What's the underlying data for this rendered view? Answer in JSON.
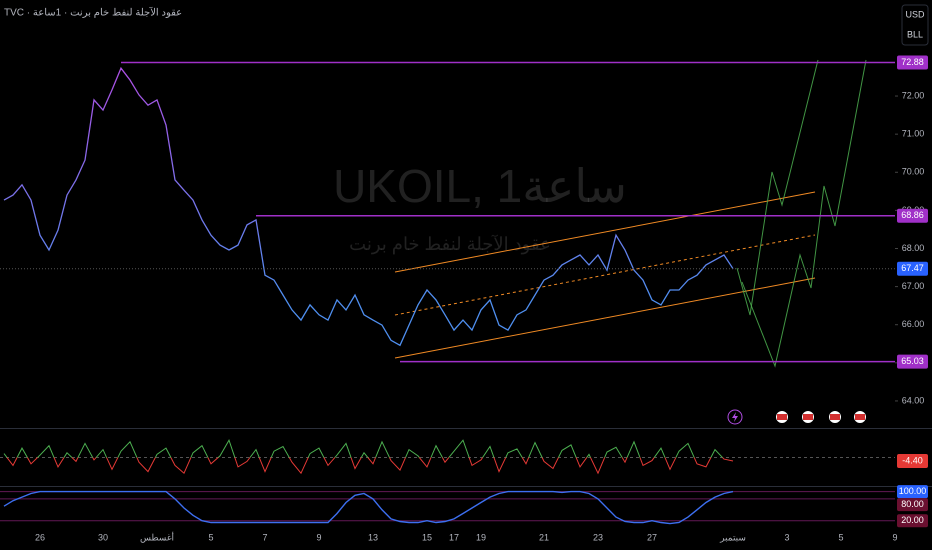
{
  "header": {
    "title": "TVC · عقود الآجلة لنفط خام برنت · 1ساعة",
    "currency": "USD",
    "unit": "BLL"
  },
  "watermark": {
    "symbol": "UKOIL, 1ساعة",
    "description": "عقود الآجلة لنفط خام برنت"
  },
  "chart_data": {
    "type": "line",
    "categories": [
      null,
      null,
      null,
      null,
      "26",
      null,
      null,
      null,
      null,
      null,
      null,
      "30",
      null,
      null,
      null,
      null,
      null,
      "أغسطس",
      null,
      null,
      null,
      null,
      null,
      "5",
      null,
      null,
      null,
      null,
      null,
      "7",
      null,
      null,
      null,
      null,
      null,
      "9",
      null,
      null,
      null,
      null,
      null,
      "13",
      null,
      null,
      null,
      null,
      null,
      "15",
      null,
      null,
      "17",
      null,
      null,
      "19",
      null,
      null,
      null,
      null,
      null,
      null,
      "21",
      null,
      null,
      null,
      null,
      null,
      "23",
      null,
      null,
      null,
      null,
      null,
      "27",
      null,
      null,
      null,
      null,
      null,
      null,
      null,
      null,
      "سبتمبر",
      null,
      null,
      null,
      null,
      null,
      "3",
      null,
      null,
      null,
      null,
      null,
      "5",
      null,
      null,
      null,
      null,
      null,
      "9"
    ],
    "series": [
      {
        "color": "#5b8def",
        "values": [
          69.27,
          69.4,
          69.67,
          69.27,
          68.35,
          67.96,
          68.48,
          69.4,
          69.8,
          70.32,
          71.9,
          71.63,
          72.16,
          72.73,
          72.42,
          72.03,
          71.76,
          71.9,
          71.24,
          69.8,
          69.53,
          69.27,
          68.75,
          68.35,
          68.09,
          67.96,
          68.09,
          68.62,
          68.75,
          67.3,
          67.17,
          66.78,
          66.39,
          66.12,
          66.52,
          66.26,
          66.12,
          66.65,
          66.39,
          66.78,
          66.26,
          66.12,
          65.99,
          65.59,
          65.46,
          65.99,
          66.52,
          66.91,
          66.65,
          66.26,
          65.86,
          66.12,
          65.86,
          66.39,
          66.65,
          65.99,
          65.86,
          66.26,
          66.39,
          66.78,
          67.17,
          67.3,
          67.57,
          67.7,
          67.83,
          67.57,
          67.83,
          67.43,
          68.35,
          67.96,
          67.43,
          67.17,
          66.65,
          66.52,
          66.91,
          66.91,
          67.17,
          67.3,
          67.57,
          67.7,
          67.83,
          67.47,
          null,
          null,
          null,
          null,
          null,
          null,
          null,
          null,
          null,
          null,
          null,
          null,
          null,
          null,
          null,
          null,
          null,
          null
        ]
      }
    ],
    "gradient_colors": [
      "#b04de3",
      "#4f8ff0"
    ],
    "ylim": [
      63.29,
      74.52
    ],
    "yticks": [
      {
        "value": 64,
        "label": "64.00"
      },
      {
        "value": 65,
        "label": "65.00"
      },
      {
        "value": 66,
        "label": "66.00"
      },
      {
        "value": 67,
        "label": "67.00"
      },
      {
        "value": 68,
        "label": "68.00"
      },
      {
        "value": 69,
        "label": "69.00"
      },
      {
        "value": 70,
        "label": "70.00"
      },
      {
        "value": 71,
        "label": "71.00"
      },
      {
        "value": 72,
        "label": "72.00"
      }
    ],
    "levels": [
      72.88,
      68.86,
      65.03
    ],
    "level_color": "#a030c8",
    "last_price": 67.47,
    "last_price_color": "#2962ff",
    "grid": false,
    "oscillator": {
      "ylim": [
        -35,
        35
      ],
      "colors": [
        "#4caf50",
        "#e53935"
      ],
      "values": [
        5,
        -10,
        12,
        -8,
        3,
        15,
        -12,
        6,
        -5,
        18,
        -3,
        10,
        -15,
        8,
        20,
        -6,
        -18,
        4,
        12,
        -10,
        -20,
        6,
        15,
        -8,
        2,
        22,
        -12,
        -5,
        10,
        -18,
        8,
        14,
        -6,
        -20,
        5,
        12,
        -10,
        3,
        18,
        -14,
        6,
        -8,
        20,
        -4,
        -16,
        10,
        2,
        -12,
        15,
        -6,
        8,
        22,
        -10,
        -3,
        14,
        -18,
        6,
        11,
        -8,
        19,
        -5,
        -14,
        9,
        16,
        -12,
        4,
        -20,
        7,
        13,
        -6,
        20,
        -10,
        -4,
        12,
        -15,
        8,
        18,
        -8,
        -12,
        10,
        -2,
        -4.4,
        null,
        null,
        null,
        null,
        null,
        null,
        null,
        null,
        null,
        null,
        null,
        null,
        null,
        null,
        null,
        null,
        null,
        null
      ],
      "last": {
        "value": -4.4,
        "label": "-4.40"
      }
    },
    "stochastic": {
      "ylim": [
        0,
        110
      ],
      "color": "#3d6ff0",
      "yticks": [
        {
          "value": 100,
          "label": "100.00"
        },
        {
          "value": 80,
          "label": "80.00"
        },
        {
          "value": 20,
          "label": "20.00"
        }
      ],
      "values": [
        60,
        75,
        85,
        95,
        100,
        100,
        100,
        100,
        100,
        100,
        100,
        100,
        100,
        100,
        100,
        100,
        100,
        100,
        100,
        80,
        55,
        35,
        20,
        15,
        15,
        15,
        15,
        15,
        15,
        15,
        15,
        15,
        15,
        15,
        15,
        15,
        15,
        40,
        70,
        90,
        95,
        80,
        50,
        25,
        18,
        15,
        15,
        20,
        15,
        18,
        25,
        40,
        55,
        70,
        85,
        95,
        100,
        100,
        100,
        100,
        100,
        100,
        98,
        100,
        100,
        95,
        80,
        55,
        30,
        18,
        15,
        15,
        20,
        15,
        12,
        15,
        30,
        50,
        70,
        85,
        95,
        100,
        null,
        null,
        null,
        null,
        null,
        null,
        null,
        null,
        null,
        null,
        null,
        null,
        null,
        null,
        null,
        null,
        null,
        null
      ]
    }
  }
}
